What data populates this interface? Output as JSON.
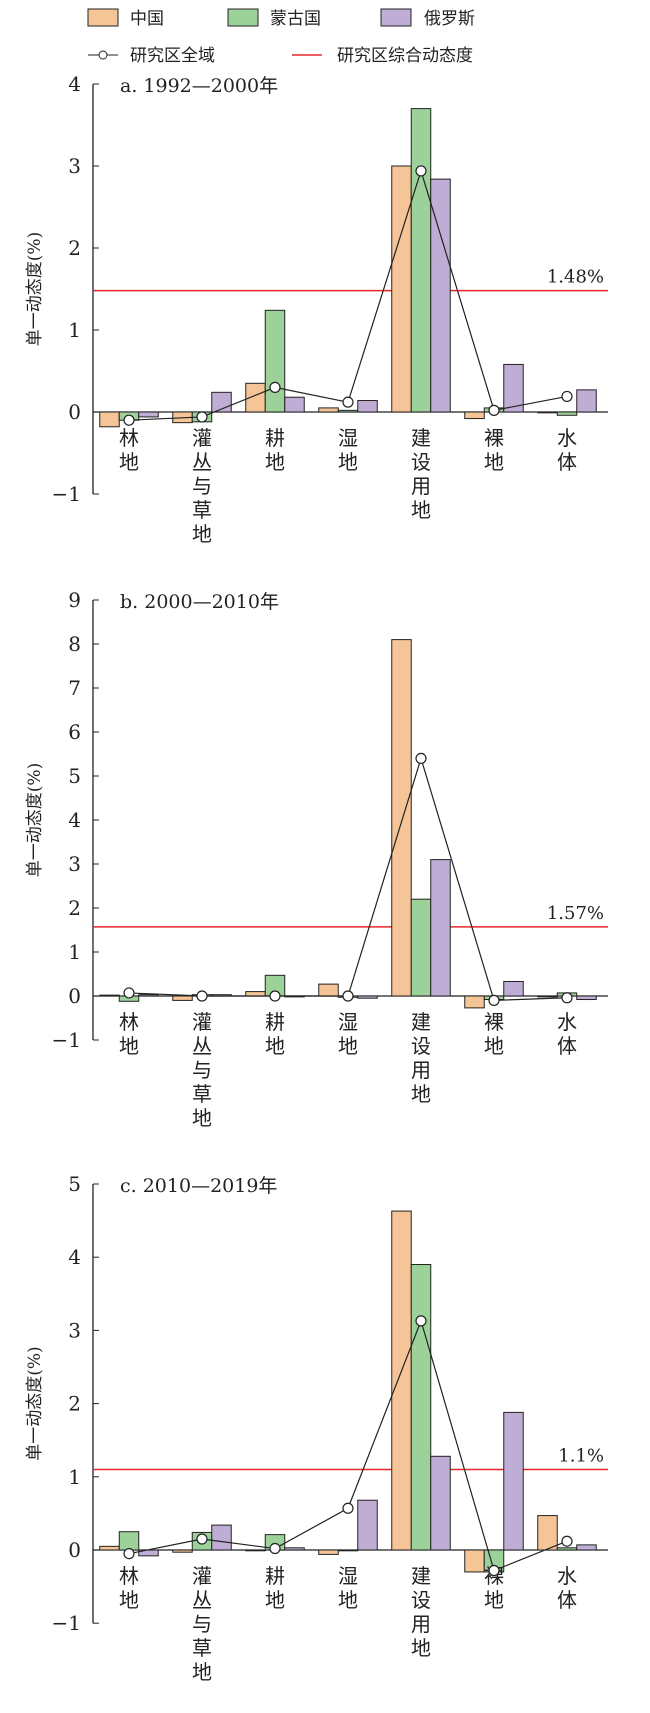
{
  "legend": {
    "china": "中国",
    "mongolia": "蒙古国",
    "russia": "俄罗斯",
    "overall": "研究区全域",
    "composite": "研究区综合动态度"
  },
  "colors": {
    "china": "#f6c597",
    "mongolia": "#9cd29a",
    "russia": "#bfadd5",
    "composite": "#e8262a",
    "overall": "#222222"
  },
  "chart_data": [
    {
      "type": "bar",
      "title": "a. 1992—2000年",
      "ylabel": "单一动态度(%)",
      "ylim": [
        -1,
        4
      ],
      "yticks": [
        "−1",
        "0",
        "1",
        "2",
        "3",
        "4"
      ],
      "categories": [
        "林地",
        "灌丛与草地",
        "耕地",
        "湿地",
        "建设用地",
        "裸地",
        "水体"
      ],
      "series": [
        {
          "name": "中国",
          "values": [
            -0.18,
            -0.13,
            0.35,
            0.05,
            3.0,
            -0.08,
            -0.01
          ]
        },
        {
          "name": "蒙古国",
          "values": [
            -0.1,
            -0.12,
            1.24,
            0.02,
            3.7,
            0.05,
            -0.04
          ]
        },
        {
          "name": "俄罗斯",
          "values": [
            -0.06,
            0.24,
            0.18,
            0.14,
            2.84,
            0.58,
            0.27
          ]
        }
      ],
      "line": {
        "name": "研究区全域",
        "values": [
          -0.1,
          -0.06,
          0.3,
          0.12,
          2.94,
          0.02,
          0.19
        ]
      },
      "reference": {
        "name": "研究区综合动态度",
        "value": 1.48,
        "label": "1.48%"
      }
    },
    {
      "type": "bar",
      "title": "b. 2000—2010年",
      "ylabel": "单一动态度(%)",
      "ylim": [
        -1,
        9
      ],
      "yticks": [
        "−1",
        "0",
        "1",
        "2",
        "3",
        "4",
        "5",
        "6",
        "7",
        "8",
        "9"
      ],
      "categories": [
        "林地",
        "灌丛与草地",
        "耕地",
        "湿地",
        "建设用地",
        "裸地",
        "水体"
      ],
      "series": [
        {
          "name": "中国",
          "values": [
            0.02,
            -0.1,
            0.1,
            0.27,
            8.1,
            -0.27,
            -0.02
          ]
        },
        {
          "name": "蒙古国",
          "values": [
            -0.12,
            0.03,
            0.47,
            -0.03,
            2.2,
            -0.08,
            0.07
          ]
        },
        {
          "name": "俄罗斯",
          "values": [
            0.03,
            0.03,
            -0.02,
            -0.05,
            3.1,
            0.33,
            -0.08
          ]
        }
      ],
      "line": {
        "name": "研究区全域",
        "values": [
          0.07,
          0.0,
          0.0,
          0.0,
          5.4,
          -0.1,
          -0.04
        ]
      },
      "reference": {
        "name": "研究区综合动态度",
        "value": 1.57,
        "label": "1.57%"
      }
    },
    {
      "type": "bar",
      "title": "c. 2010—2019年",
      "ylabel": "单一动态度(%)",
      "ylim": [
        -1,
        5
      ],
      "yticks": [
        "−1",
        "0",
        "1",
        "2",
        "3",
        "4",
        "5"
      ],
      "categories": [
        "林地",
        "灌丛与草地",
        "耕地",
        "湿地",
        "建设用地",
        "裸地",
        "水体"
      ],
      "series": [
        {
          "name": "中国",
          "values": [
            0.05,
            -0.03,
            0.0,
            -0.06,
            4.63,
            -0.3,
            0.47
          ]
        },
        {
          "name": "蒙古国",
          "values": [
            0.25,
            0.24,
            0.21,
            0.0,
            3.9,
            -0.3,
            0.03
          ]
        },
        {
          "name": "俄罗斯",
          "values": [
            -0.08,
            0.34,
            0.03,
            0.68,
            1.28,
            1.88,
            0.07
          ]
        }
      ],
      "line": {
        "name": "研究区全域",
        "values": [
          -0.05,
          0.15,
          0.02,
          0.57,
          3.13,
          -0.28,
          0.12
        ]
      },
      "reference": {
        "name": "研究区综合动态度",
        "value": 1.1,
        "label": "1.1%"
      }
    }
  ]
}
